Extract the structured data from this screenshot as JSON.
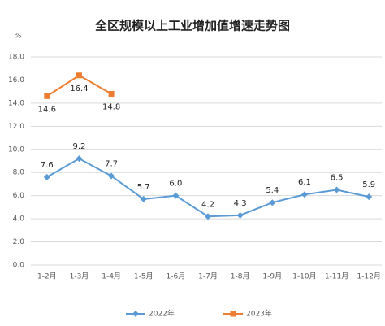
{
  "chart_data": {
    "type": "line",
    "title": "全区规模以上工业增加值增速走势图",
    "y_unit": "%",
    "categories": [
      "1-2月",
      "1-3月",
      "1-4月",
      "1-5月",
      "1-6月",
      "1-7月",
      "1-8月",
      "1-9月",
      "1-10月",
      "1-11月",
      "1-12月"
    ],
    "series": [
      {
        "name": "2022年",
        "color": "#5b9bd5",
        "marker": "diamond",
        "values": [
          7.6,
          9.2,
          7.7,
          5.7,
          6.0,
          4.2,
          4.3,
          5.4,
          6.1,
          6.5,
          5.9
        ],
        "value_labels": [
          "7.6",
          "9.2",
          "7.7",
          "5.7",
          "6.0",
          "4.2",
          "4.3",
          "5.4",
          "6.1",
          "6.5",
          "5.9"
        ]
      },
      {
        "name": "2023年",
        "color": "#ed7d31",
        "marker": "square",
        "values": [
          14.6,
          16.4,
          14.8,
          null,
          null,
          null,
          null,
          null,
          null,
          null,
          null
        ],
        "value_labels": [
          "14.6",
          "16.4",
          "14.8",
          null,
          null,
          null,
          null,
          null,
          null,
          null,
          null
        ]
      }
    ],
    "ylim": [
      0,
      18
    ],
    "yticks": [
      {
        "value": 0,
        "label": "0.0"
      },
      {
        "value": 2,
        "label": "2.0"
      },
      {
        "value": 4,
        "label": "4.0"
      },
      {
        "value": 6,
        "label": "6.0"
      },
      {
        "value": 8,
        "label": "8.0"
      },
      {
        "value": 10,
        "label": "10.0"
      },
      {
        "value": 12,
        "label": "12.0"
      },
      {
        "value": 14,
        "label": "14.0"
      },
      {
        "value": 16,
        "label": "16.0"
      },
      {
        "value": 18,
        "label": "18.0"
      }
    ],
    "grid": true,
    "legend": "bottom"
  }
}
